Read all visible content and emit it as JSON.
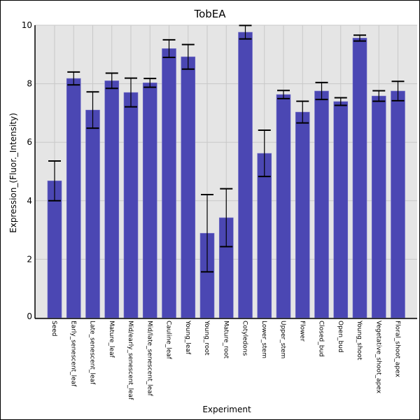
{
  "chart_data": {
    "type": "bar",
    "title": "TobEA",
    "xlabel": "Experiment",
    "ylabel": "Expression_(Fluor._Intensity)",
    "ylim": [
      0,
      10
    ],
    "yticks": [
      "0",
      "2",
      "4",
      "6",
      "8",
      "10"
    ],
    "grid": true,
    "bar_color": "#4b47b3",
    "categories": [
      "Seed",
      "Early_senescent_leaf",
      "Late_senescent_leaf",
      "Mature_leaf",
      "Mid/early_senescent_leaf",
      "Mid/late_senescent_leaf",
      "Cauline_leaf",
      "Young_leaf",
      "Young_root",
      "Mature_root",
      "Cotyledons",
      "Lower_stem",
      "Upper_stem",
      "Flower",
      "Closed_bud",
      "Open_bud",
      "Young_shoot",
      "Vegetative_shoot_apex",
      "Floral_shoot_apex"
    ],
    "values": [
      4.68,
      8.18,
      7.1,
      8.1,
      7.7,
      8.03,
      9.2,
      8.92,
      2.89,
      3.42,
      9.76,
      5.62,
      7.63,
      7.03,
      7.75,
      7.39,
      9.56,
      7.58,
      7.75
    ],
    "errors": [
      0.68,
      0.22,
      0.62,
      0.26,
      0.49,
      0.15,
      0.3,
      0.42,
      1.32,
      0.99,
      0.23,
      0.79,
      0.14,
      0.37,
      0.29,
      0.13,
      0.1,
      0.18,
      0.33
    ]
  }
}
